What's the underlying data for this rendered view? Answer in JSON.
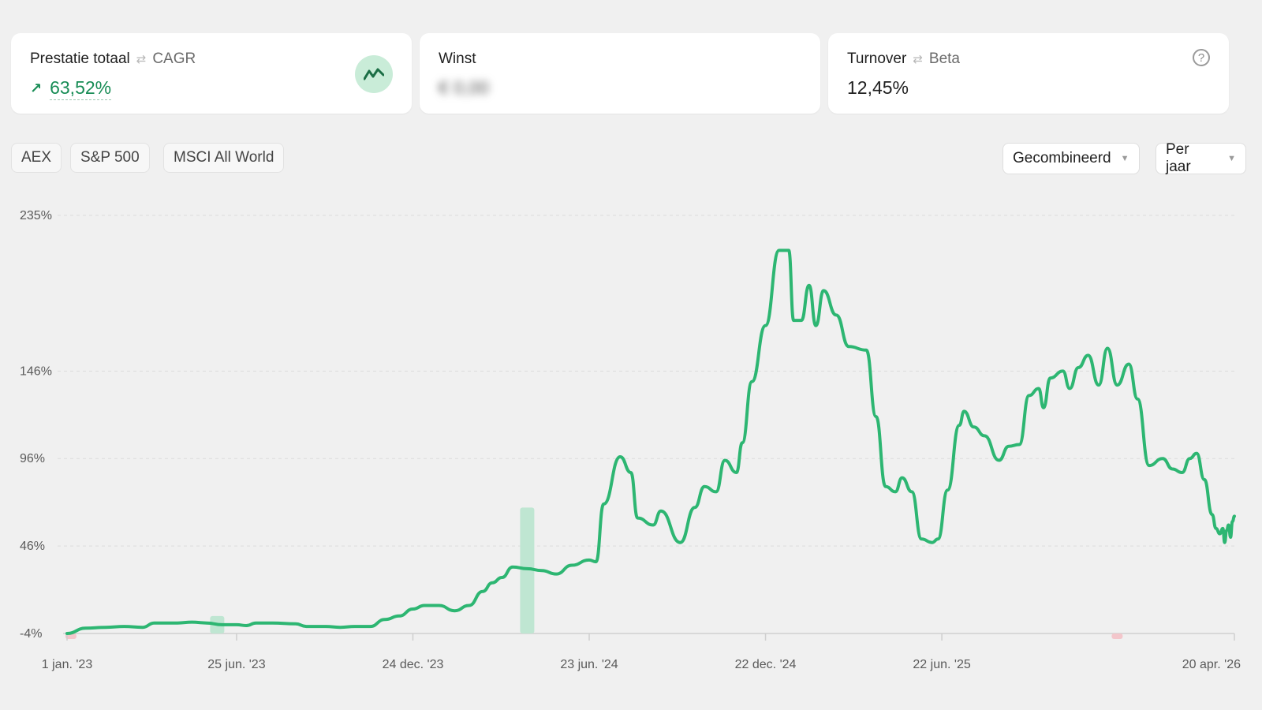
{
  "cards": {
    "performance": {
      "label": "Prestatie totaal",
      "alt_label": "CAGR",
      "value": "63,52%",
      "trend_icon": "trend-up-icon"
    },
    "profit": {
      "label": "Winst",
      "value": "€ 0,00"
    },
    "turnover": {
      "label": "Turnover",
      "alt_label": "Beta",
      "value": "12,45%",
      "help_icon": "question-icon"
    }
  },
  "benchmarks": [
    "AEX",
    "S&P 500",
    "MSCI All World"
  ],
  "selects": {
    "mode": "Gecombineerd",
    "period": "Per jaar"
  },
  "colors": {
    "line": "#2db672",
    "positive_bar": "#bfe6d2",
    "negative_bar": "#f3c6cb",
    "positive_text": "#178c55"
  },
  "chart_data": {
    "type": "line",
    "title": "",
    "xlabel": "",
    "ylabel": "",
    "y_ticks": [
      "235%",
      "146%",
      "96%",
      "46%",
      "-4%"
    ],
    "x_ticks": [
      "1 jan. '23",
      "25 jun. '23",
      "24 dec. '23",
      "23 jun. '24",
      "22 dec. '24",
      "22 jun. '25",
      "20 apr. '26"
    ],
    "x_tick_dates": [
      "2023-01-01",
      "2023-06-25",
      "2023-12-24",
      "2024-06-23",
      "2024-12-22",
      "2025-06-22",
      "2026-04-20"
    ],
    "xlim": [
      "2023-01-01",
      "2026-04-20"
    ],
    "ylim": [
      -4,
      235
    ],
    "grid": true,
    "series": [
      {
        "values": [
          [
            "2023-01-01",
            -4
          ],
          [
            "2023-01-20",
            -1
          ],
          [
            "2023-02-10",
            -0.5
          ],
          [
            "2023-03-01",
            0
          ],
          [
            "2023-03-20",
            -0.5
          ],
          [
            "2023-04-01",
            2
          ],
          [
            "2023-04-25",
            2
          ],
          [
            "2023-05-10",
            2.5
          ],
          [
            "2023-05-25",
            2
          ],
          [
            "2023-06-10",
            1
          ],
          [
            "2023-06-25",
            1
          ],
          [
            "2023-07-05",
            0.5
          ],
          [
            "2023-07-15",
            2
          ],
          [
            "2023-08-01",
            2
          ],
          [
            "2023-08-25",
            1.5
          ],
          [
            "2023-09-05",
            0
          ],
          [
            "2023-09-25",
            0
          ],
          [
            "2023-10-10",
            -0.5
          ],
          [
            "2023-10-25",
            0
          ],
          [
            "2023-11-10",
            0
          ],
          [
            "2023-11-25",
            4
          ],
          [
            "2023-12-10",
            6
          ],
          [
            "2023-12-24",
            10
          ],
          [
            "2024-01-05",
            12
          ],
          [
            "2024-01-20",
            12
          ],
          [
            "2024-02-05",
            9
          ],
          [
            "2024-02-20",
            12
          ],
          [
            "2024-03-05",
            20
          ],
          [
            "2024-03-15",
            25
          ],
          [
            "2024-03-25",
            28
          ],
          [
            "2024-04-05",
            34
          ],
          [
            "2024-04-20",
            33
          ],
          [
            "2024-05-05",
            32
          ],
          [
            "2024-05-20",
            30
          ],
          [
            "2024-06-05",
            35
          ],
          [
            "2024-06-23",
            38
          ],
          [
            "2024-06-30",
            37
          ],
          [
            "2024-07-08",
            70
          ],
          [
            "2024-07-25",
            97
          ],
          [
            "2024-08-05",
            88
          ],
          [
            "2024-08-12",
            62
          ],
          [
            "2024-08-28",
            58
          ],
          [
            "2024-09-05",
            66
          ],
          [
            "2024-09-25",
            48
          ],
          [
            "2024-10-10",
            68
          ],
          [
            "2024-10-20",
            80
          ],
          [
            "2024-11-01",
            77
          ],
          [
            "2024-11-10",
            95
          ],
          [
            "2024-11-22",
            88
          ],
          [
            "2024-11-28",
            105
          ],
          [
            "2024-12-08",
            140
          ],
          [
            "2024-12-22",
            172
          ],
          [
            "2025-01-05",
            215
          ],
          [
            "2025-01-15",
            215
          ],
          [
            "2025-01-20",
            175
          ],
          [
            "2025-01-28",
            175
          ],
          [
            "2025-02-05",
            195
          ],
          [
            "2025-02-12",
            172
          ],
          [
            "2025-02-20",
            192
          ],
          [
            "2025-03-05",
            178
          ],
          [
            "2025-03-18",
            160
          ],
          [
            "2025-04-05",
            158
          ],
          [
            "2025-04-15",
            120
          ],
          [
            "2025-04-25",
            80
          ],
          [
            "2025-05-05",
            77
          ],
          [
            "2025-05-12",
            85
          ],
          [
            "2025-05-22",
            77
          ],
          [
            "2025-06-01",
            50
          ],
          [
            "2025-06-12",
            48
          ],
          [
            "2025-06-18",
            50
          ],
          [
            "2025-06-28",
            78
          ],
          [
            "2025-07-10",
            115
          ],
          [
            "2025-07-15",
            123
          ],
          [
            "2025-07-25",
            114
          ],
          [
            "2025-08-05",
            109
          ],
          [
            "2025-08-20",
            95
          ],
          [
            "2025-08-30",
            103
          ],
          [
            "2025-09-10",
            104
          ],
          [
            "2025-09-20",
            132
          ],
          [
            "2025-09-30",
            136
          ],
          [
            "2025-10-05",
            125
          ],
          [
            "2025-10-12",
            142
          ],
          [
            "2025-10-25",
            146
          ],
          [
            "2025-11-01",
            136
          ],
          [
            "2025-11-10",
            148
          ],
          [
            "2025-11-20",
            155
          ],
          [
            "2025-12-01",
            138
          ],
          [
            "2025-12-10",
            159
          ],
          [
            "2025-12-20",
            138
          ],
          [
            "2026-01-01",
            150
          ],
          [
            "2026-01-10",
            130
          ],
          [
            "2026-01-22",
            92
          ],
          [
            "2026-02-05",
            96
          ],
          [
            "2026-02-15",
            90
          ],
          [
            "2026-02-25",
            88
          ],
          [
            "2026-03-05",
            96
          ],
          [
            "2026-03-12",
            99
          ],
          [
            "2026-03-20",
            84
          ],
          [
            "2026-03-28",
            64
          ],
          [
            "2026-04-01",
            56
          ],
          [
            "2026-04-05",
            53
          ],
          [
            "2026-04-08",
            56
          ],
          [
            "2026-04-10",
            48
          ],
          [
            "2026-04-12",
            55
          ],
          [
            "2026-04-14",
            58
          ],
          [
            "2026-04-16",
            51
          ],
          [
            "2026-04-18",
            60
          ],
          [
            "2026-04-20",
            63
          ]
        ]
      }
    ],
    "volume_bars": [
      {
        "date": "2023-06-05",
        "direction": "positive",
        "height": 10
      },
      {
        "date": "2024-04-20",
        "direction": "positive",
        "height": 72
      },
      {
        "date": "2025-12-20",
        "direction": "negative",
        "height": 2
      },
      {
        "date": "2023-01-05",
        "direction": "negative",
        "height": 1
      }
    ]
  }
}
